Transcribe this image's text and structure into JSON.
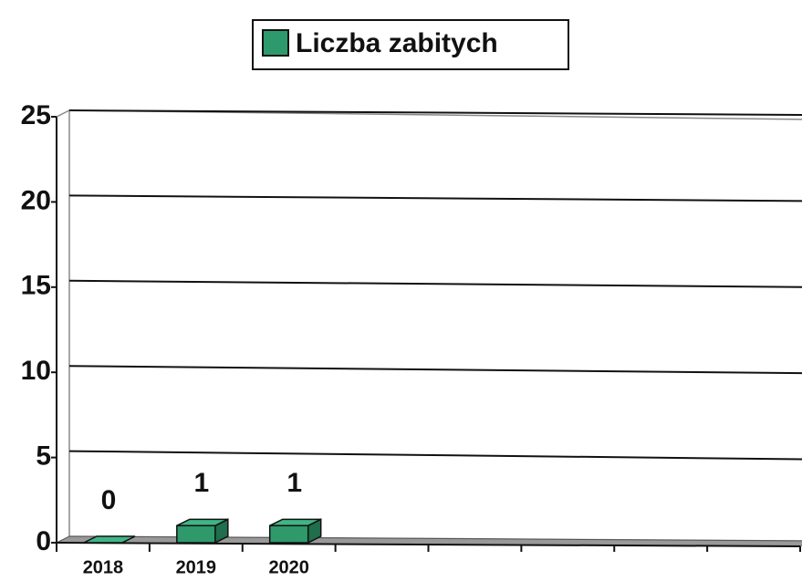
{
  "chart_data": {
    "type": "bar",
    "categories": [
      "2018",
      "2019",
      "2020",
      null,
      null,
      null,
      null,
      null
    ],
    "series": [
      {
        "name": "Liczba zabitych",
        "color": "#2e9a6c",
        "values": [
          0,
          1,
          1,
          null,
          null,
          null,
          null,
          null
        ]
      }
    ],
    "ylim": [
      0,
      25
    ],
    "yticks": [
      0,
      5,
      10,
      15,
      20,
      25
    ],
    "grid": true,
    "legend": "top"
  }
}
